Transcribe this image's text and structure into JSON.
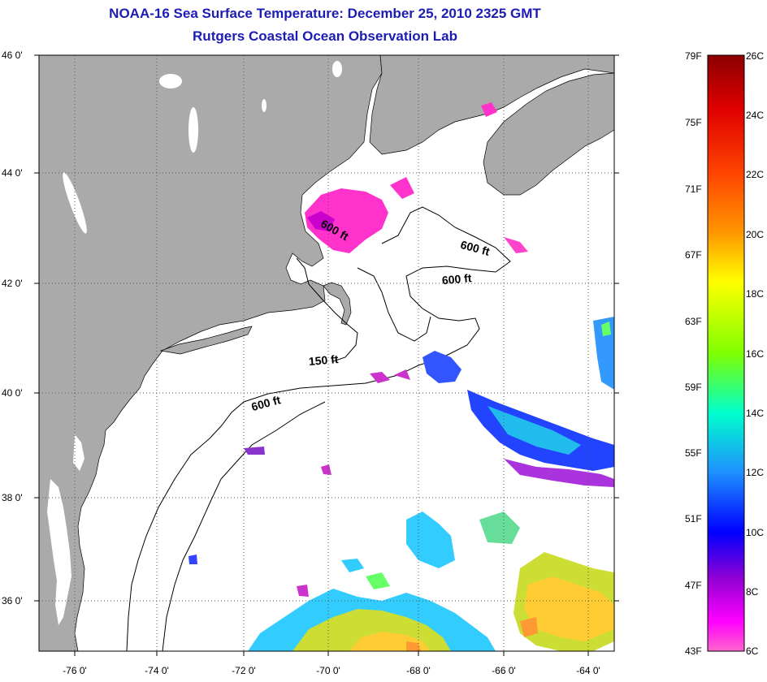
{
  "title": {
    "line1": "NOAA-16 Sea Surface Temperature:  December 25, 2010 2325 GMT",
    "line2": "Rutgers Coastal Ocean Observation Lab"
  },
  "map": {
    "lat_labels": [
      "46 0'",
      "44 0'",
      "42 0'",
      "40 0'",
      "38 0'",
      "36 0'"
    ],
    "lon_labels": [
      "-76 0'",
      "-74 0'",
      "-72 0'",
      "-70 0'",
      "-68 0'",
      "-66 0'",
      "-64 0'"
    ],
    "depth_labels": [
      "600 ft",
      "600 ft",
      "600 ft",
      "150 ft",
      "600 ft"
    ],
    "colors": {
      "land": "#aaaaaa",
      "water": "#ffffff",
      "gridline": "#555555",
      "contour": "#000000"
    }
  },
  "colorbar": {
    "fahrenheit_labels": [
      "79F",
      "75F",
      "71F",
      "67F",
      "63F",
      "59F",
      "55F",
      "51F",
      "47F",
      "43F"
    ],
    "celsius_labels": [
      "26C",
      "24C",
      "22C",
      "20C",
      "18C",
      "16C",
      "14C",
      "12C",
      "10C",
      "8C",
      "6C"
    ],
    "gradient_colors": [
      "#8b0000",
      "#e00000",
      "#ff4500",
      "#ff9900",
      "#ffff00",
      "#7fff00",
      "#00ffcc",
      "#1e90ff",
      "#0000ff",
      "#9400d3",
      "#ff00ff",
      "#ff66cc"
    ]
  }
}
